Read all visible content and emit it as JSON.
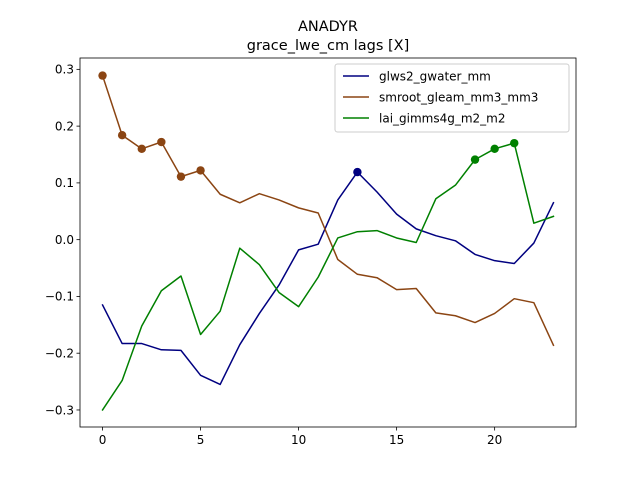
{
  "chart_data": {
    "type": "line",
    "title": "ANADYR",
    "subtitle": "grace_lwe_cm lags [X]",
    "xlabel": "",
    "ylabel": "",
    "xlim": [
      -1.15,
      24.15
    ],
    "ylim": [
      -0.33,
      0.32
    ],
    "xticks": [
      0,
      5,
      10,
      15,
      20
    ],
    "yticks": [
      -0.3,
      -0.2,
      -0.1,
      0.0,
      0.1,
      0.2,
      0.3
    ],
    "ytick_labels": [
      "−0.3",
      "−0.2",
      "−0.1",
      "0.0",
      "0.1",
      "0.2",
      "0.3"
    ],
    "grid": false,
    "legend_position": "upper right",
    "x": [
      0,
      1,
      2,
      3,
      4,
      5,
      6,
      7,
      8,
      9,
      10,
      11,
      12,
      13,
      14,
      15,
      16,
      17,
      18,
      19,
      20,
      21,
      22,
      23
    ],
    "series": [
      {
        "name": "glws2_gwater_mm",
        "color": "#000080",
        "values": [
          -0.115,
          -0.183,
          -0.183,
          -0.194,
          -0.195,
          -0.239,
          -0.255,
          -0.185,
          -0.13,
          -0.08,
          -0.018,
          -0.008,
          0.07,
          0.119,
          0.084,
          0.045,
          0.019,
          0.007,
          -0.002,
          -0.026,
          -0.037,
          -0.042,
          -0.006,
          0.065
        ],
        "markers": [
          13
        ]
      },
      {
        "name": "smroot_gleam_mm3_mm3",
        "color": "#8B4513",
        "values": [
          0.289,
          0.184,
          0.16,
          0.172,
          0.111,
          0.122,
          0.08,
          0.065,
          0.081,
          0.07,
          0.056,
          0.047,
          -0.035,
          -0.061,
          -0.067,
          -0.088,
          -0.086,
          -0.129,
          -0.134,
          -0.146,
          -0.13,
          -0.104,
          -0.111,
          -0.186
        ],
        "markers": [
          0,
          1,
          2,
          3,
          4,
          5
        ]
      },
      {
        "name": "lai_gimms4g_m2_m2",
        "color": "#008000",
        "values": [
          -0.3,
          -0.248,
          -0.152,
          -0.09,
          -0.064,
          -0.167,
          -0.126,
          -0.015,
          -0.044,
          -0.093,
          -0.118,
          -0.066,
          0.003,
          0.014,
          0.016,
          0.003,
          -0.005,
          0.072,
          0.096,
          0.141,
          0.16,
          0.17,
          0.029,
          0.041
        ],
        "markers": [
          19,
          20,
          21
        ]
      }
    ]
  }
}
